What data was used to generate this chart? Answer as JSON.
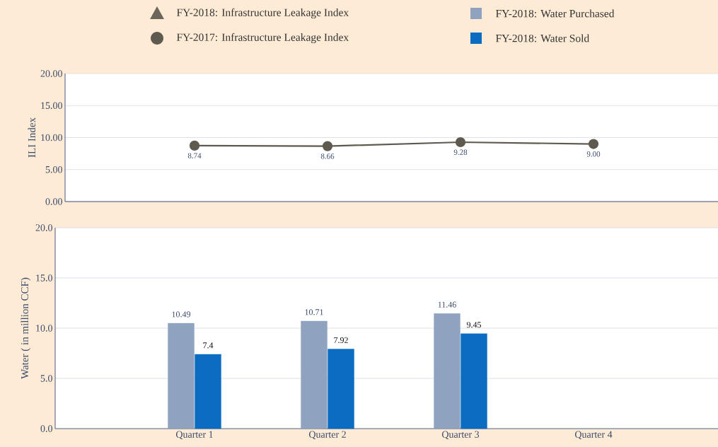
{
  "chart_data": [
    {
      "type": "line",
      "ylabel": "ILI Index",
      "categories": [
        null,
        null,
        null,
        null
      ],
      "series": [
        {
          "name": "FY-2018: Infrastructure Leakage Index",
          "color": "#6b655c",
          "marker": "triangle",
          "values": [
            null,
            null,
            null,
            null
          ]
        },
        {
          "name": "FY-2017: Infrastructure Leakage Index",
          "color": "#5f5a4f",
          "marker": "circle",
          "values": [
            8.74,
            8.66,
            9.28,
            9.0
          ],
          "value_labels": [
            "8.74",
            "8.66",
            "9.28",
            "9.00"
          ]
        }
      ],
      "ylim": [
        0,
        20
      ],
      "yticks": [
        {
          "value": 0,
          "label": "0.00"
        },
        {
          "value": 5,
          "label": "5.00"
        },
        {
          "value": 10,
          "label": "10.00"
        },
        {
          "value": 15,
          "label": "15.00"
        },
        {
          "value": 20,
          "label": "20.00"
        }
      ],
      "grid": "y",
      "legend": "top",
      "line_style": "solid"
    },
    {
      "type": "bar",
      "ylabel": "Water ( in million CCF)",
      "categories": [
        "Quarter 1",
        "Quarter 2",
        "Quarter 3",
        "Quarter 4"
      ],
      "series": [
        {
          "name": "FY-2018: Water Purchased",
          "color": "#8fa3c0",
          "values": [
            10.49,
            10.71,
            11.46,
            null
          ],
          "value_labels": [
            "10.49",
            "10.71",
            "11.46",
            null
          ]
        },
        {
          "name": "FY-2018: Water Sold",
          "color": "#0b6cc2",
          "values": [
            7.4,
            7.92,
            9.45,
            null
          ],
          "value_labels": [
            "7.4",
            "7.92",
            "9.45",
            null
          ]
        }
      ],
      "ylim": [
        0,
        20
      ],
      "yticks": [
        {
          "value": 0,
          "label": "0.0"
        },
        {
          "value": 5,
          "label": "5.0"
        },
        {
          "value": 10,
          "label": "10.0"
        },
        {
          "value": 15,
          "label": "15.0"
        },
        {
          "value": 20,
          "label": "20.0"
        }
      ],
      "grid": "y",
      "legend": "top"
    }
  ]
}
